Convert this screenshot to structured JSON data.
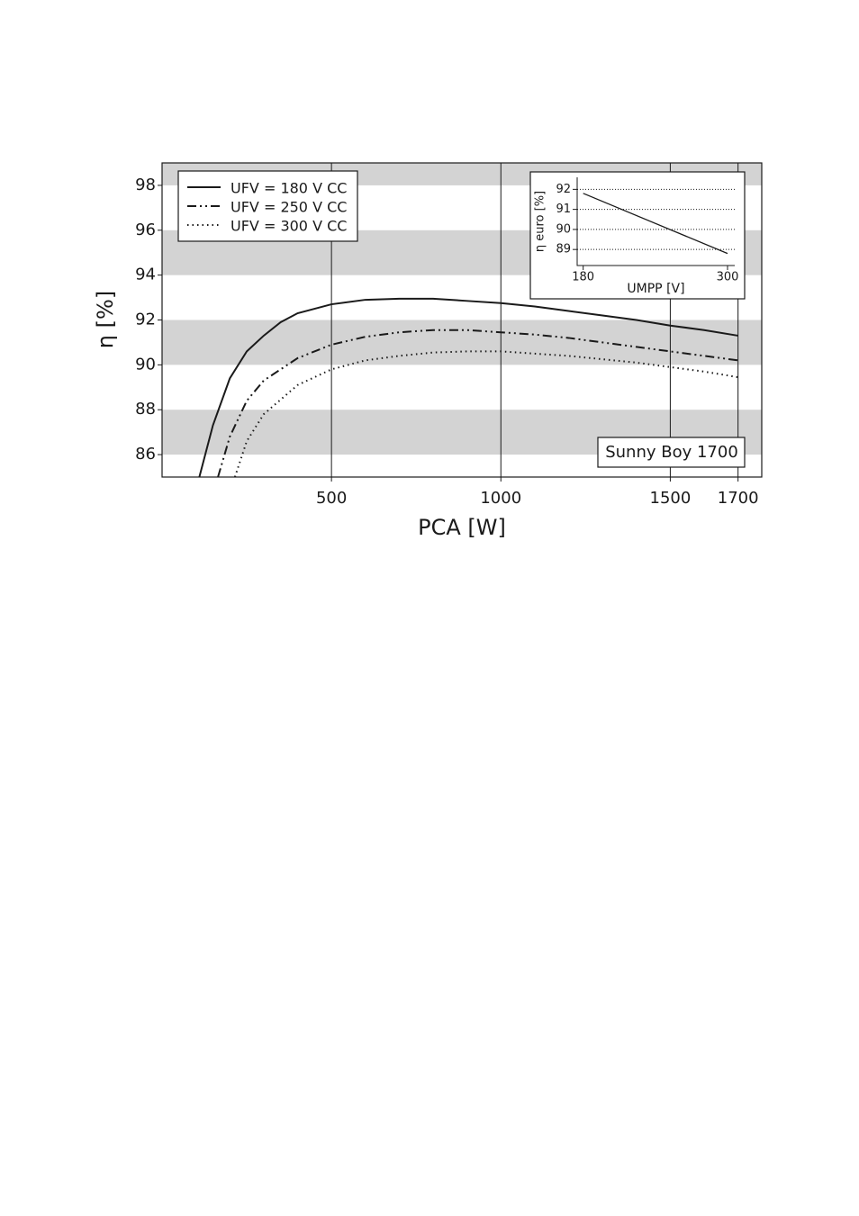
{
  "chart_data": [
    {
      "type": "line",
      "xlabel": "PCA [W]",
      "ylabel": "η [%]",
      "annotation": "Sunny Boy 1700",
      "xlim": [
        0,
        1770
      ],
      "xticks": [
        500,
        1000,
        1500,
        1700
      ],
      "ylim": [
        85,
        99
      ],
      "yticks": [
        86,
        88,
        90,
        92,
        94,
        96,
        98
      ],
      "grid": true,
      "bands": "#d3d3d3",
      "legend": "upper left",
      "series": [
        {
          "name": "UFV = 180 V CC",
          "color": "#1a1a1a",
          "style": "solid",
          "x": [
            110,
            150,
            200,
            250,
            300,
            350,
            400,
            500,
            600,
            700,
            800,
            900,
            1000,
            1100,
            1200,
            1300,
            1400,
            1500,
            1600,
            1700
          ],
          "values": [
            85,
            87.3,
            89.4,
            90.6,
            91.3,
            91.9,
            92.3,
            92.7,
            92.9,
            92.95,
            92.95,
            92.85,
            92.75,
            92.6,
            92.4,
            92.2,
            92.0,
            91.75,
            91.55,
            91.3
          ]
        },
        {
          "name": "UFV = 250 V CC",
          "color": "#1a1a1a",
          "style": "dashdot",
          "x": [
            165,
            200,
            250,
            300,
            400,
            500,
            600,
            700,
            800,
            900,
            1000,
            1100,
            1200,
            1300,
            1400,
            1500,
            1600,
            1700
          ],
          "values": [
            85,
            86.8,
            88.4,
            89.3,
            90.3,
            90.9,
            91.25,
            91.45,
            91.55,
            91.55,
            91.45,
            91.35,
            91.2,
            91.0,
            90.8,
            90.6,
            90.4,
            90.2
          ]
        },
        {
          "name": "UFV = 300 V CC",
          "color": "#1a1a1a",
          "style": "dotted",
          "x": [
            215,
            250,
            300,
            400,
            500,
            600,
            700,
            800,
            900,
            1000,
            1100,
            1200,
            1300,
            1400,
            1500,
            1600,
            1700
          ],
          "values": [
            85,
            86.6,
            87.8,
            89.1,
            89.8,
            90.2,
            90.4,
            90.55,
            90.6,
            90.6,
            90.5,
            90.4,
            90.25,
            90.1,
            89.9,
            89.7,
            89.45
          ]
        }
      ]
    },
    {
      "type": "line",
      "xlabel": "UMPP [V]",
      "ylabel": "η euro [%]",
      "xlim": [
        175,
        306
      ],
      "xticks": [
        180,
        300
      ],
      "ylim": [
        88.2,
        92.6
      ],
      "yticks": [
        89,
        90,
        91,
        92
      ],
      "grid": true,
      "series": [
        {
          "color": "#1a1a1a",
          "style": "solid",
          "x": [
            180,
            300
          ],
          "values": [
            91.8,
            88.8
          ]
        }
      ]
    }
  ]
}
